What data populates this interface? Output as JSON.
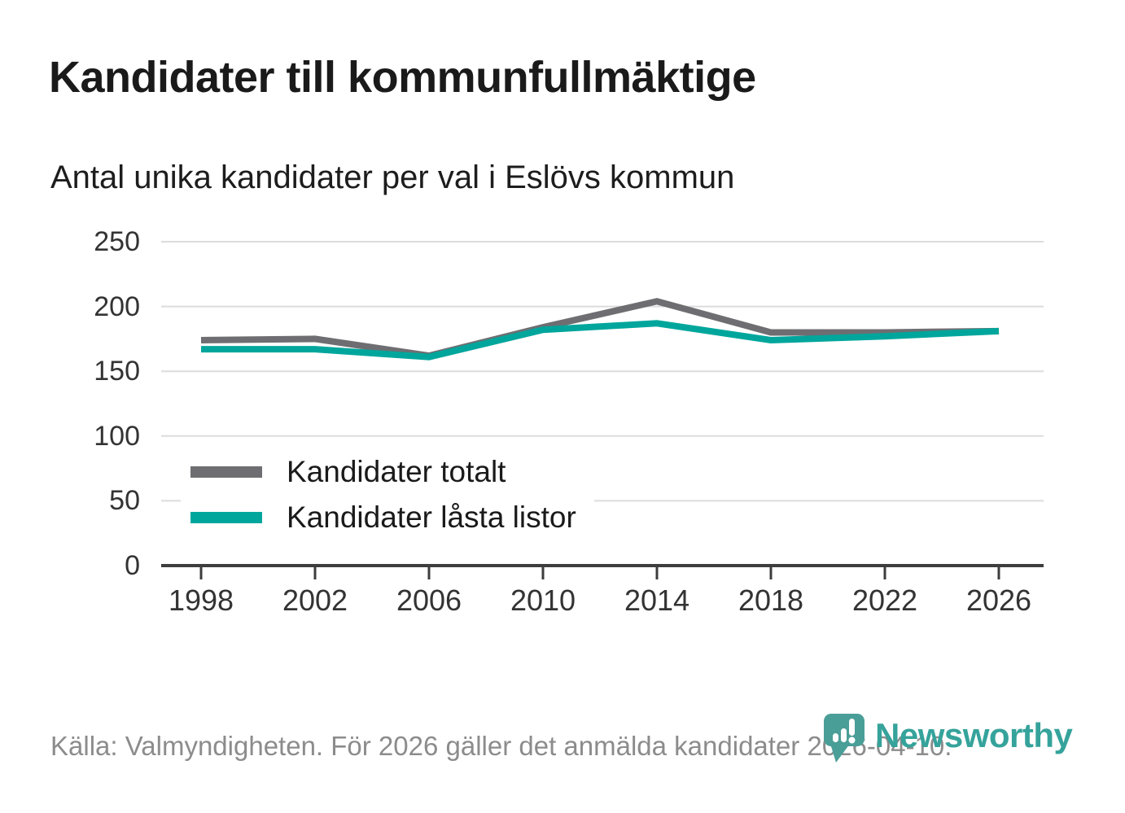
{
  "header": {
    "title": "Kandidater till kommunfullmäktige",
    "subtitle": "Antal unika kandidater per val i Eslövs kommun"
  },
  "chart_data": {
    "type": "line",
    "title": "Kandidater till kommunfullmäktige",
    "subtitle": "Antal unika kandidater per val i Eslövs kommun",
    "categories": [
      "1998",
      "2002",
      "2006",
      "2010",
      "2014",
      "2018",
      "2022",
      "2026"
    ],
    "series": [
      {
        "name": "Kandidater totalt",
        "color": "#6e6e72",
        "values": [
          174,
          175,
          162,
          184,
          204,
          180,
          180,
          181
        ]
      },
      {
        "name": "Kandidater låsta listor",
        "color": "#00a69c",
        "values": [
          167,
          167,
          161,
          182,
          187,
          174,
          177,
          181
        ]
      }
    ],
    "xlabel": "",
    "ylabel": "",
    "ylim": [
      0,
      250
    ],
    "yticks": [
      0,
      50,
      100,
      150,
      200,
      250
    ],
    "grid": "horizontal",
    "legend_position": "inside-top-left"
  },
  "footer": {
    "source": "Källa: Valmyndigheten. För 2026 gäller det anmälda kandidater 2026-04-10."
  },
  "branding": {
    "wordmark": "Newsworthy",
    "brand_color": "#35a39b",
    "logo_mark_color": "#4a9e98"
  },
  "colors": {
    "axis_line": "#3d3d3d",
    "gridline": "#dcdcdc",
    "axis_label": "#333333",
    "footer_text": "#8c8c8c"
  }
}
